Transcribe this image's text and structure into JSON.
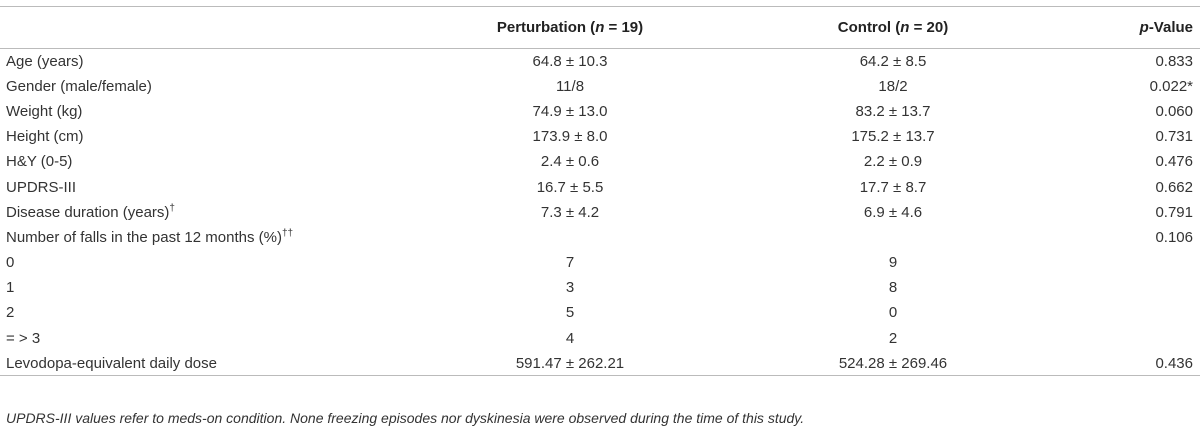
{
  "table": {
    "header": {
      "col1": [
        "Perturbation (",
        "n",
        " = 19)"
      ],
      "col2": [
        "Control (",
        "n",
        " = 20)"
      ],
      "col3": [
        "p",
        "-Value"
      ]
    },
    "rows": [
      {
        "label": "Age (years)",
        "cells": [
          "64.8 ± 10.3",
          "64.2 ± 8.5",
          "0.833"
        ]
      },
      {
        "label": "Gender (male/female)",
        "cells": [
          "11/8",
          "18/2",
          "0.022*"
        ]
      },
      {
        "label": "Weight (kg)",
        "cells": [
          "74.9 ± 13.0",
          "83.2 ± 13.7",
          "0.060"
        ]
      },
      {
        "label": "Height (cm)",
        "cells": [
          "173.9 ± 8.0",
          "175.2 ± 13.7",
          "0.731"
        ]
      },
      {
        "label": "H&Y (0-5)",
        "cells": [
          "2.4 ± 0.6",
          "2.2 ± 0.9",
          "0.476"
        ]
      },
      {
        "label": "UPDRS-III",
        "cells": [
          "16.7 ± 5.5",
          "17.7 ± 8.7",
          "0.662"
        ]
      },
      {
        "label": "Disease duration (years)",
        "label_sup": "†",
        "cells": [
          "7.3 ± 4.2",
          "6.9 ± 4.6",
          "0.791"
        ]
      },
      {
        "label": "Number of falls in the past 12 months (%)",
        "label_sup": "††",
        "cells": [
          null,
          null,
          "0.106"
        ]
      },
      {
        "label": "0",
        "cells": [
          "7",
          "9",
          null
        ]
      },
      {
        "label": "1",
        "cells": [
          "3",
          "8",
          null
        ]
      },
      {
        "label": "2",
        "cells": [
          "5",
          "0",
          null
        ]
      },
      {
        "label": "= > 3",
        "cells": [
          "4",
          "2",
          null
        ]
      },
      {
        "label": "Levodopa-equivalent daily dose",
        "cells": [
          "591.47 ± 262.21",
          "524.28 ± 269.46",
          "0.436"
        ]
      }
    ],
    "footnote": "UPDRS-III values refer to meds-on condition. None freezing episodes nor dyskinesia were observed during the time of this study."
  }
}
